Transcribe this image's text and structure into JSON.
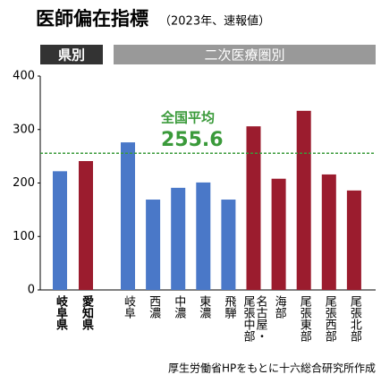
{
  "chart_data": {
    "type": "bar",
    "title": "医師偏在指標",
    "subtitle": "（2023年、速報値）",
    "panel_labels": [
      "県別",
      "二次医療圏別"
    ],
    "categories": [
      "岐阜県",
      "愛知県",
      "岐阜",
      "西濃",
      "中濃",
      "東濃",
      "飛騨",
      "名古屋・尾張中部",
      "海部",
      "尾張東部",
      "尾張西部",
      "尾張北部"
    ],
    "values": [
      222,
      241,
      276,
      169,
      191,
      201,
      169,
      306,
      208,
      335,
      216,
      186
    ],
    "colors": [
      "#4a78c8",
      "#9b1c2e",
      "#4a78c8",
      "#4a78c8",
      "#4a78c8",
      "#4a78c8",
      "#4a78c8",
      "#9b1c2e",
      "#9b1c2e",
      "#9b1c2e",
      "#9b1c2e",
      "#9b1c2e"
    ],
    "ylim": [
      0,
      400
    ],
    "yticks": [
      0,
      100,
      200,
      300,
      400
    ],
    "grid": false,
    "reference_line": {
      "label": "全国平均",
      "value": 255.6,
      "color": "#3a9a3a"
    },
    "source": "厚生労働省HPをもとに十六総合研究所作成"
  }
}
